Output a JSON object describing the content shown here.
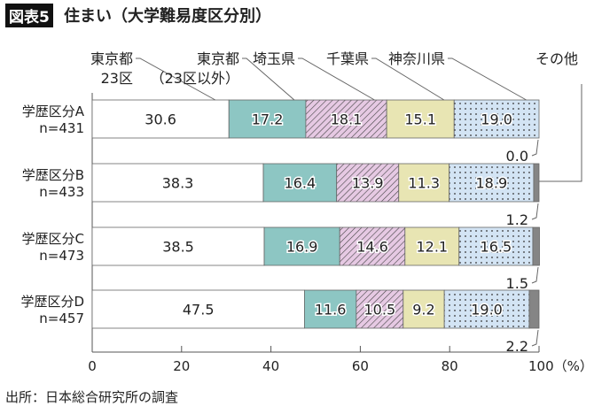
{
  "figure_label": "図表5",
  "title": "住まい（大学難易度区分別）",
  "source": "出所：日本総合研究所の調査",
  "chart_data": {
    "type": "bar",
    "orientation": "horizontal-stacked-100",
    "categories": [
      [
        "学歴区分A",
        "n=431"
      ],
      [
        "学歴区分B",
        "n=433"
      ],
      [
        "学歴区分C",
        "n=473"
      ],
      [
        "学歴区分D",
        "n=457"
      ]
    ],
    "series": [
      {
        "name": "東京都\n23区",
        "values": [
          30.6,
          38.3,
          38.5,
          47.5
        ],
        "color": "#ffffff",
        "pattern": "none"
      },
      {
        "name": "東京都\n（23区以外）",
        "values": [
          17.2,
          16.4,
          16.9,
          11.6
        ],
        "color": "#8dc6c3",
        "pattern": "none"
      },
      {
        "name": "埼玉県",
        "values": [
          18.1,
          13.9,
          14.6,
          10.5
        ],
        "color": "#e6c9e3",
        "pattern": "hatch"
      },
      {
        "name": "千葉県",
        "values": [
          15.1,
          11.3,
          12.1,
          9.2
        ],
        "color": "#e8e5b3",
        "pattern": "none"
      },
      {
        "name": "神奈川県",
        "values": [
          19.0,
          18.9,
          16.5,
          19.0
        ],
        "color": "#d3e4f4",
        "pattern": "dots"
      },
      {
        "name": "その他",
        "values": [
          0.0,
          1.2,
          1.5,
          2.2
        ],
        "color": "#858585",
        "pattern": "none"
      }
    ],
    "value_labels": [
      [
        "30.6",
        "17.2",
        "18.1",
        "15.1",
        "19.0",
        "0.0"
      ],
      [
        "38.3",
        "16.4",
        "13.9",
        "11.3",
        "18.9",
        "1.2"
      ],
      [
        "38.5",
        "16.9",
        "14.6",
        "12.1",
        "16.5",
        "1.5"
      ],
      [
        "47.5",
        "11.6",
        "10.5",
        "9.2",
        "19.0",
        "2.2"
      ]
    ],
    "xlim": [
      0,
      100
    ],
    "xticks": [
      "0",
      "20",
      "40",
      "60",
      "80",
      "100（%）"
    ],
    "xtick_values": [
      0,
      20,
      40,
      60,
      80,
      100
    ],
    "legend_placement": "top (leader lines)",
    "grid": false
  }
}
